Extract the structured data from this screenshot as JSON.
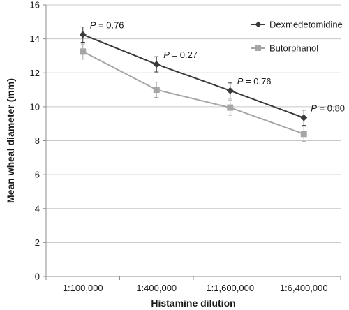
{
  "chart_data": {
    "type": "line",
    "categories": [
      "1:100,000",
      "1:400,000",
      "1:1,600,000",
      "1:6,400,000"
    ],
    "series": [
      {
        "name": "Dexmedetomidine",
        "values": [
          14.25,
          12.5,
          10.95,
          9.35
        ],
        "error": [
          0.45,
          0.45,
          0.45,
          0.45
        ],
        "color": "#3a3a3a",
        "marker": "diamond"
      },
      {
        "name": "Butorphanol",
        "values": [
          13.25,
          11.0,
          9.95,
          8.4
        ],
        "error": [
          0.45,
          0.45,
          0.45,
          0.45
        ],
        "color": "#a6a6a6",
        "marker": "square"
      }
    ],
    "annotations": [
      {
        "prefix": "P",
        "text": " = 0.76",
        "category_index": 0
      },
      {
        "prefix": "P",
        "text": " = 0.27",
        "category_index": 1
      },
      {
        "prefix": "P",
        "text": " = 0.76",
        "category_index": 2
      },
      {
        "prefix": "P",
        "text": " = 0.80",
        "category_index": 3
      }
    ],
    "xlabel": "Histamine dilution",
    "ylabel": "Mean wheal diameter (mm)",
    "ylim": [
      0,
      16
    ],
    "yticks": [
      0,
      2,
      4,
      6,
      8,
      10,
      12,
      14,
      16
    ],
    "grid": true,
    "legend_position": "top-right"
  }
}
